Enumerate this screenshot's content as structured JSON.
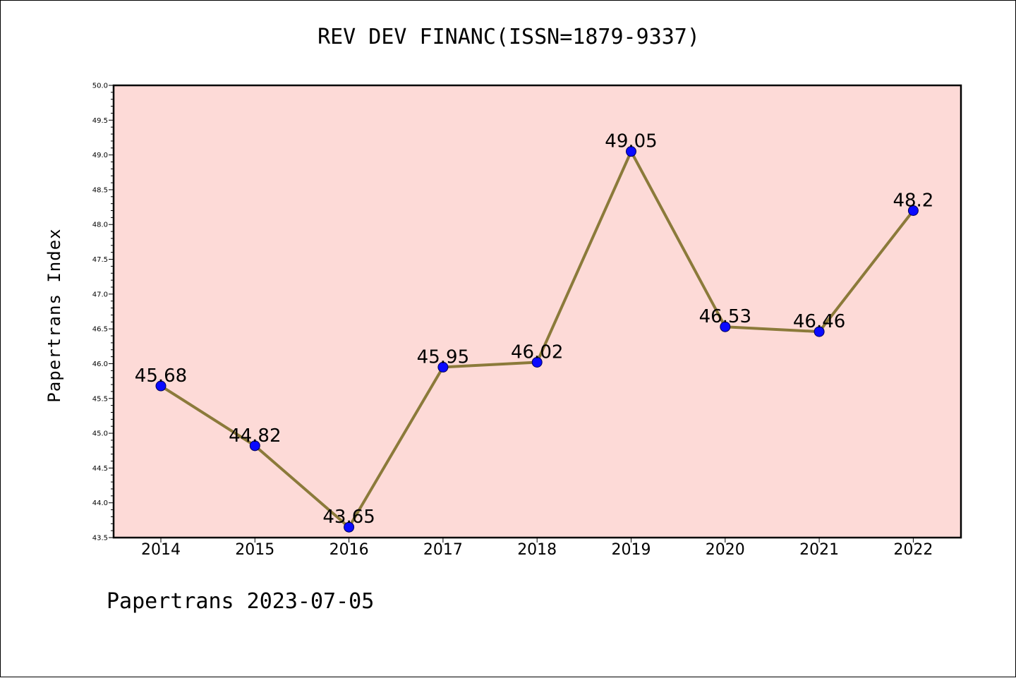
{
  "title": "REV DEV FINANC(ISSN=1879-9337)",
  "footer": "Papertrans 2023-07-05",
  "colors": {
    "plot_bg": "#fddad7",
    "line": "#8b7a3a",
    "marker": "#0a0aff"
  },
  "chart_data": {
    "type": "line",
    "title": "REV DEV FINANC(ISSN=1879-9337)",
    "xlabel": "",
    "ylabel": "Papertrans Index",
    "categories": [
      "2014",
      "2015",
      "2016",
      "2017",
      "2018",
      "2019",
      "2020",
      "2021",
      "2022"
    ],
    "series": [
      {
        "values": [
          45.68,
          44.82,
          43.65,
          45.95,
          46.02,
          49.05,
          46.53,
          46.46,
          48.2
        ]
      }
    ],
    "data_labels": [
      "45.68",
      "44.82",
      "43.65",
      "45.95",
      "46.02",
      "49.05",
      "46.53",
      "46.46",
      "48.2"
    ],
    "ylim": [
      43.5,
      50.0
    ],
    "yticks": [
      "43.5",
      "44.0",
      "44.5",
      "45.0",
      "45.5",
      "46.0",
      "46.5",
      "47.0",
      "47.5",
      "48.0",
      "48.5",
      "49.0",
      "49.5",
      "50.0"
    ],
    "grid": false,
    "legend": "none"
  }
}
